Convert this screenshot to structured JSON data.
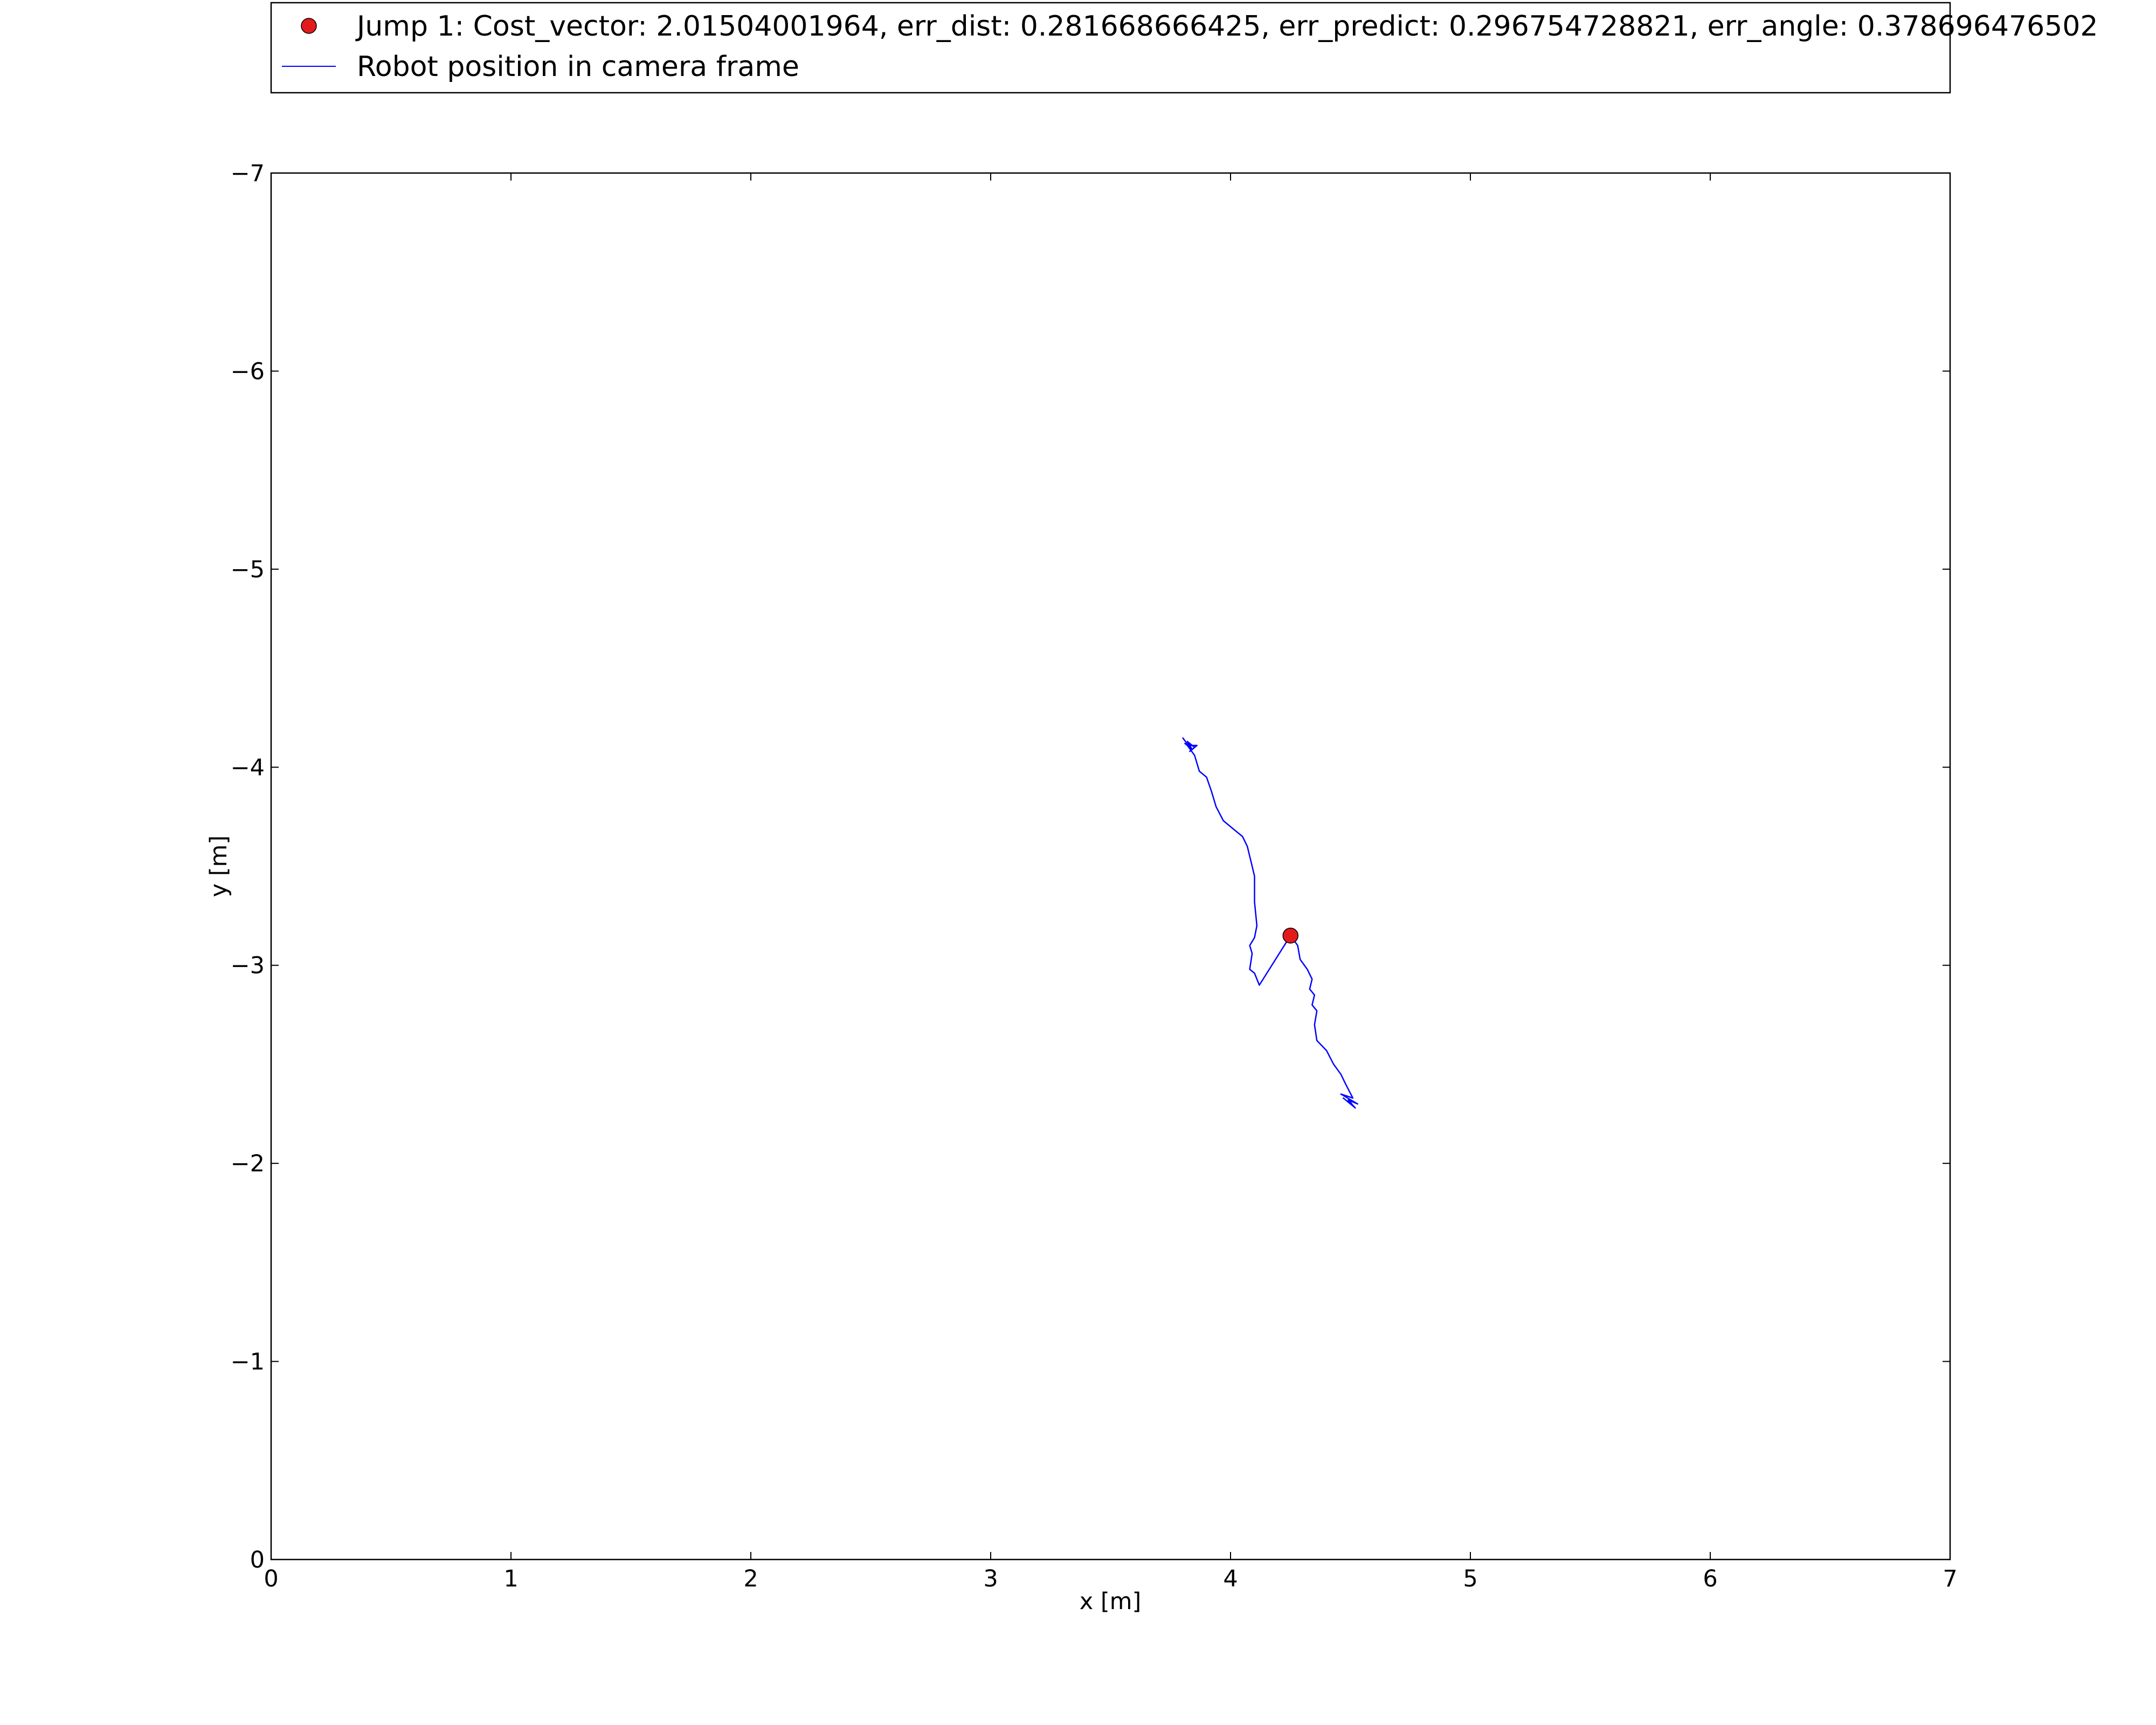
{
  "chart_data": {
    "type": "line",
    "xlabel": "x [m]",
    "ylabel": "y [m]",
    "xlim": [
      0,
      7
    ],
    "ylim": [
      0,
      -7
    ],
    "y_axis_inverted": true,
    "x_ticks": [
      "0",
      "1",
      "2",
      "3",
      "4",
      "5",
      "6",
      "7"
    ],
    "y_ticks": [
      "0",
      "−1",
      "−2",
      "−3",
      "−4",
      "−5",
      "−6",
      "−7"
    ],
    "grid": false,
    "legend_position": "top, above plot",
    "series": [
      {
        "name": "Jump 1: Cost_vector: 2.01504001964, err_dist: 0.281668666425, err_predict: 0.296754728821, err_angle: 0.378696476502",
        "kind": "marker",
        "color": "#e31a1c",
        "points": [
          {
            "x": 4.25,
            "y": -3.15
          }
        ]
      },
      {
        "name": "Robot position in camera frame",
        "kind": "line",
        "color": "#0000ff",
        "points": [
          {
            "x": 3.8,
            "y": -4.15
          },
          {
            "x": 3.83,
            "y": -4.1
          },
          {
            "x": 3.81,
            "y": -4.12
          },
          {
            "x": 3.84,
            "y": -4.09
          },
          {
            "x": 3.82,
            "y": -4.13
          },
          {
            "x": 3.85,
            "y": -4.1
          },
          {
            "x": 3.83,
            "y": -4.08
          },
          {
            "x": 3.86,
            "y": -4.11
          },
          {
            "x": 3.82,
            "y": -4.11
          },
          {
            "x": 3.85,
            "y": -4.06
          },
          {
            "x": 3.87,
            "y": -3.98
          },
          {
            "x": 3.9,
            "y": -3.95
          },
          {
            "x": 3.92,
            "y": -3.88
          },
          {
            "x": 3.94,
            "y": -3.8
          },
          {
            "x": 3.97,
            "y": -3.73
          },
          {
            "x": 4.01,
            "y": -3.69
          },
          {
            "x": 4.05,
            "y": -3.65
          },
          {
            "x": 4.07,
            "y": -3.6
          },
          {
            "x": 4.09,
            "y": -3.5
          },
          {
            "x": 4.1,
            "y": -3.45
          },
          {
            "x": 4.1,
            "y": -3.32
          },
          {
            "x": 4.11,
            "y": -3.2
          },
          {
            "x": 4.1,
            "y": -3.14
          },
          {
            "x": 4.08,
            "y": -3.1
          },
          {
            "x": 4.09,
            "y": -3.06
          },
          {
            "x": 4.08,
            "y": -2.98
          },
          {
            "x": 4.1,
            "y": -2.96
          },
          {
            "x": 4.12,
            "y": -2.9
          },
          {
            "x": 4.25,
            "y": -3.15
          },
          {
            "x": 4.28,
            "y": -3.1
          },
          {
            "x": 4.29,
            "y": -3.03
          },
          {
            "x": 4.32,
            "y": -2.98
          },
          {
            "x": 4.34,
            "y": -2.93
          },
          {
            "x": 4.33,
            "y": -2.88
          },
          {
            "x": 4.35,
            "y": -2.85
          },
          {
            "x": 4.34,
            "y": -2.8
          },
          {
            "x": 4.36,
            "y": -2.77
          },
          {
            "x": 4.35,
            "y": -2.7
          },
          {
            "x": 4.36,
            "y": -2.62
          },
          {
            "x": 4.4,
            "y": -2.57
          },
          {
            "x": 4.43,
            "y": -2.5
          },
          {
            "x": 4.46,
            "y": -2.45
          },
          {
            "x": 4.48,
            "y": -2.4
          },
          {
            "x": 4.51,
            "y": -2.33
          },
          {
            "x": 4.46,
            "y": -2.35
          },
          {
            "x": 4.53,
            "y": -2.3
          },
          {
            "x": 4.49,
            "y": -2.32
          },
          {
            "x": 4.52,
            "y": -2.28
          },
          {
            "x": 4.47,
            "y": -2.33
          },
          {
            "x": 4.51,
            "y": -2.29
          },
          {
            "x": 4.5,
            "y": -2.31
          }
        ]
      }
    ]
  }
}
